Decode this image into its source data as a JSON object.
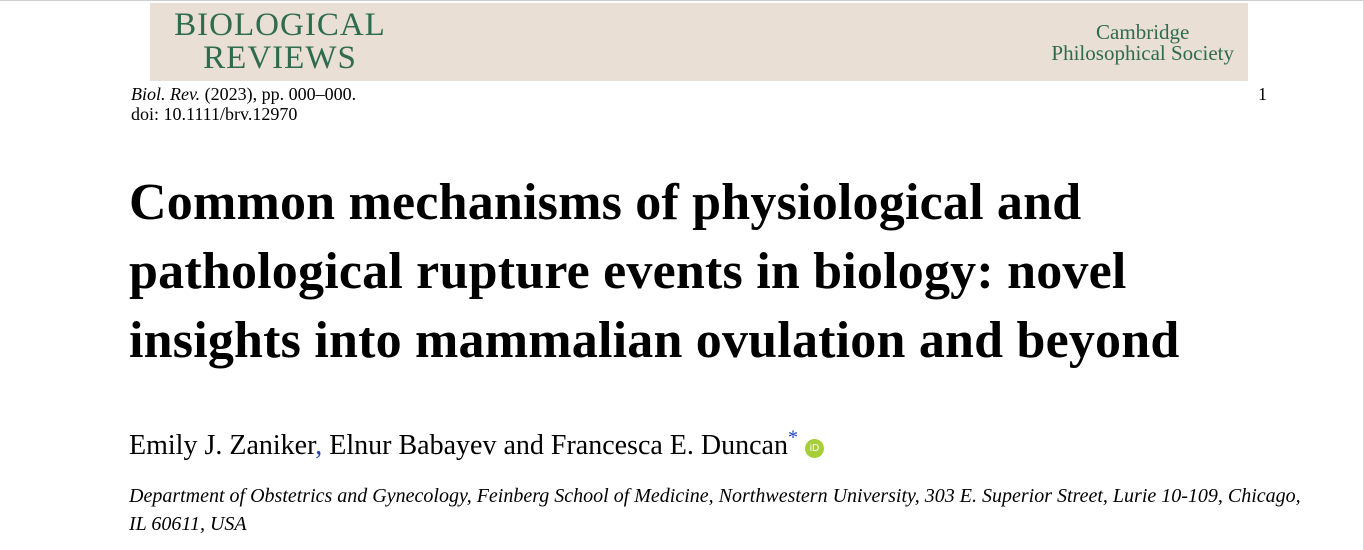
{
  "header": {
    "journal_line1": "BIOLOGICAL",
    "journal_line2": "REVIEWS",
    "society_line1": "Cambridge",
    "society_line2": "Philosophical Society",
    "colors": {
      "banner_background": "#e9dfd5",
      "journal_green": "#2e6b4f"
    }
  },
  "citation": {
    "journal_abbrev": "Biol. Rev.",
    "details": " (2023), pp. 000–000.",
    "doi": "doi: 10.1111/brv.12970",
    "page_number": "1"
  },
  "article": {
    "title_lines": [
      "Common mechanisms of physiological and",
      "pathological rupture events in biology: novel",
      "insights into mammalian ovulation and beyond"
    ],
    "authors": {
      "author1": "Emily J. Zaniker",
      "separator": ",",
      "rest": " Elnur Babayev and Francesca E. Duncan",
      "corresponding_mark": "*",
      "orcid_icon": "orcid-icon",
      "orcid_label": "iD",
      "colors": {
        "link_blue": "#1f3fbf",
        "orcid_green": "#a6ce39"
      }
    },
    "affiliation_lines": [
      "Department of Obstetrics and Gynecology, Feinberg School of Medicine, Northwestern University, 303 E. Superior Street, Lurie 10-109, Chicago,",
      "IL 60611, USA"
    ]
  }
}
